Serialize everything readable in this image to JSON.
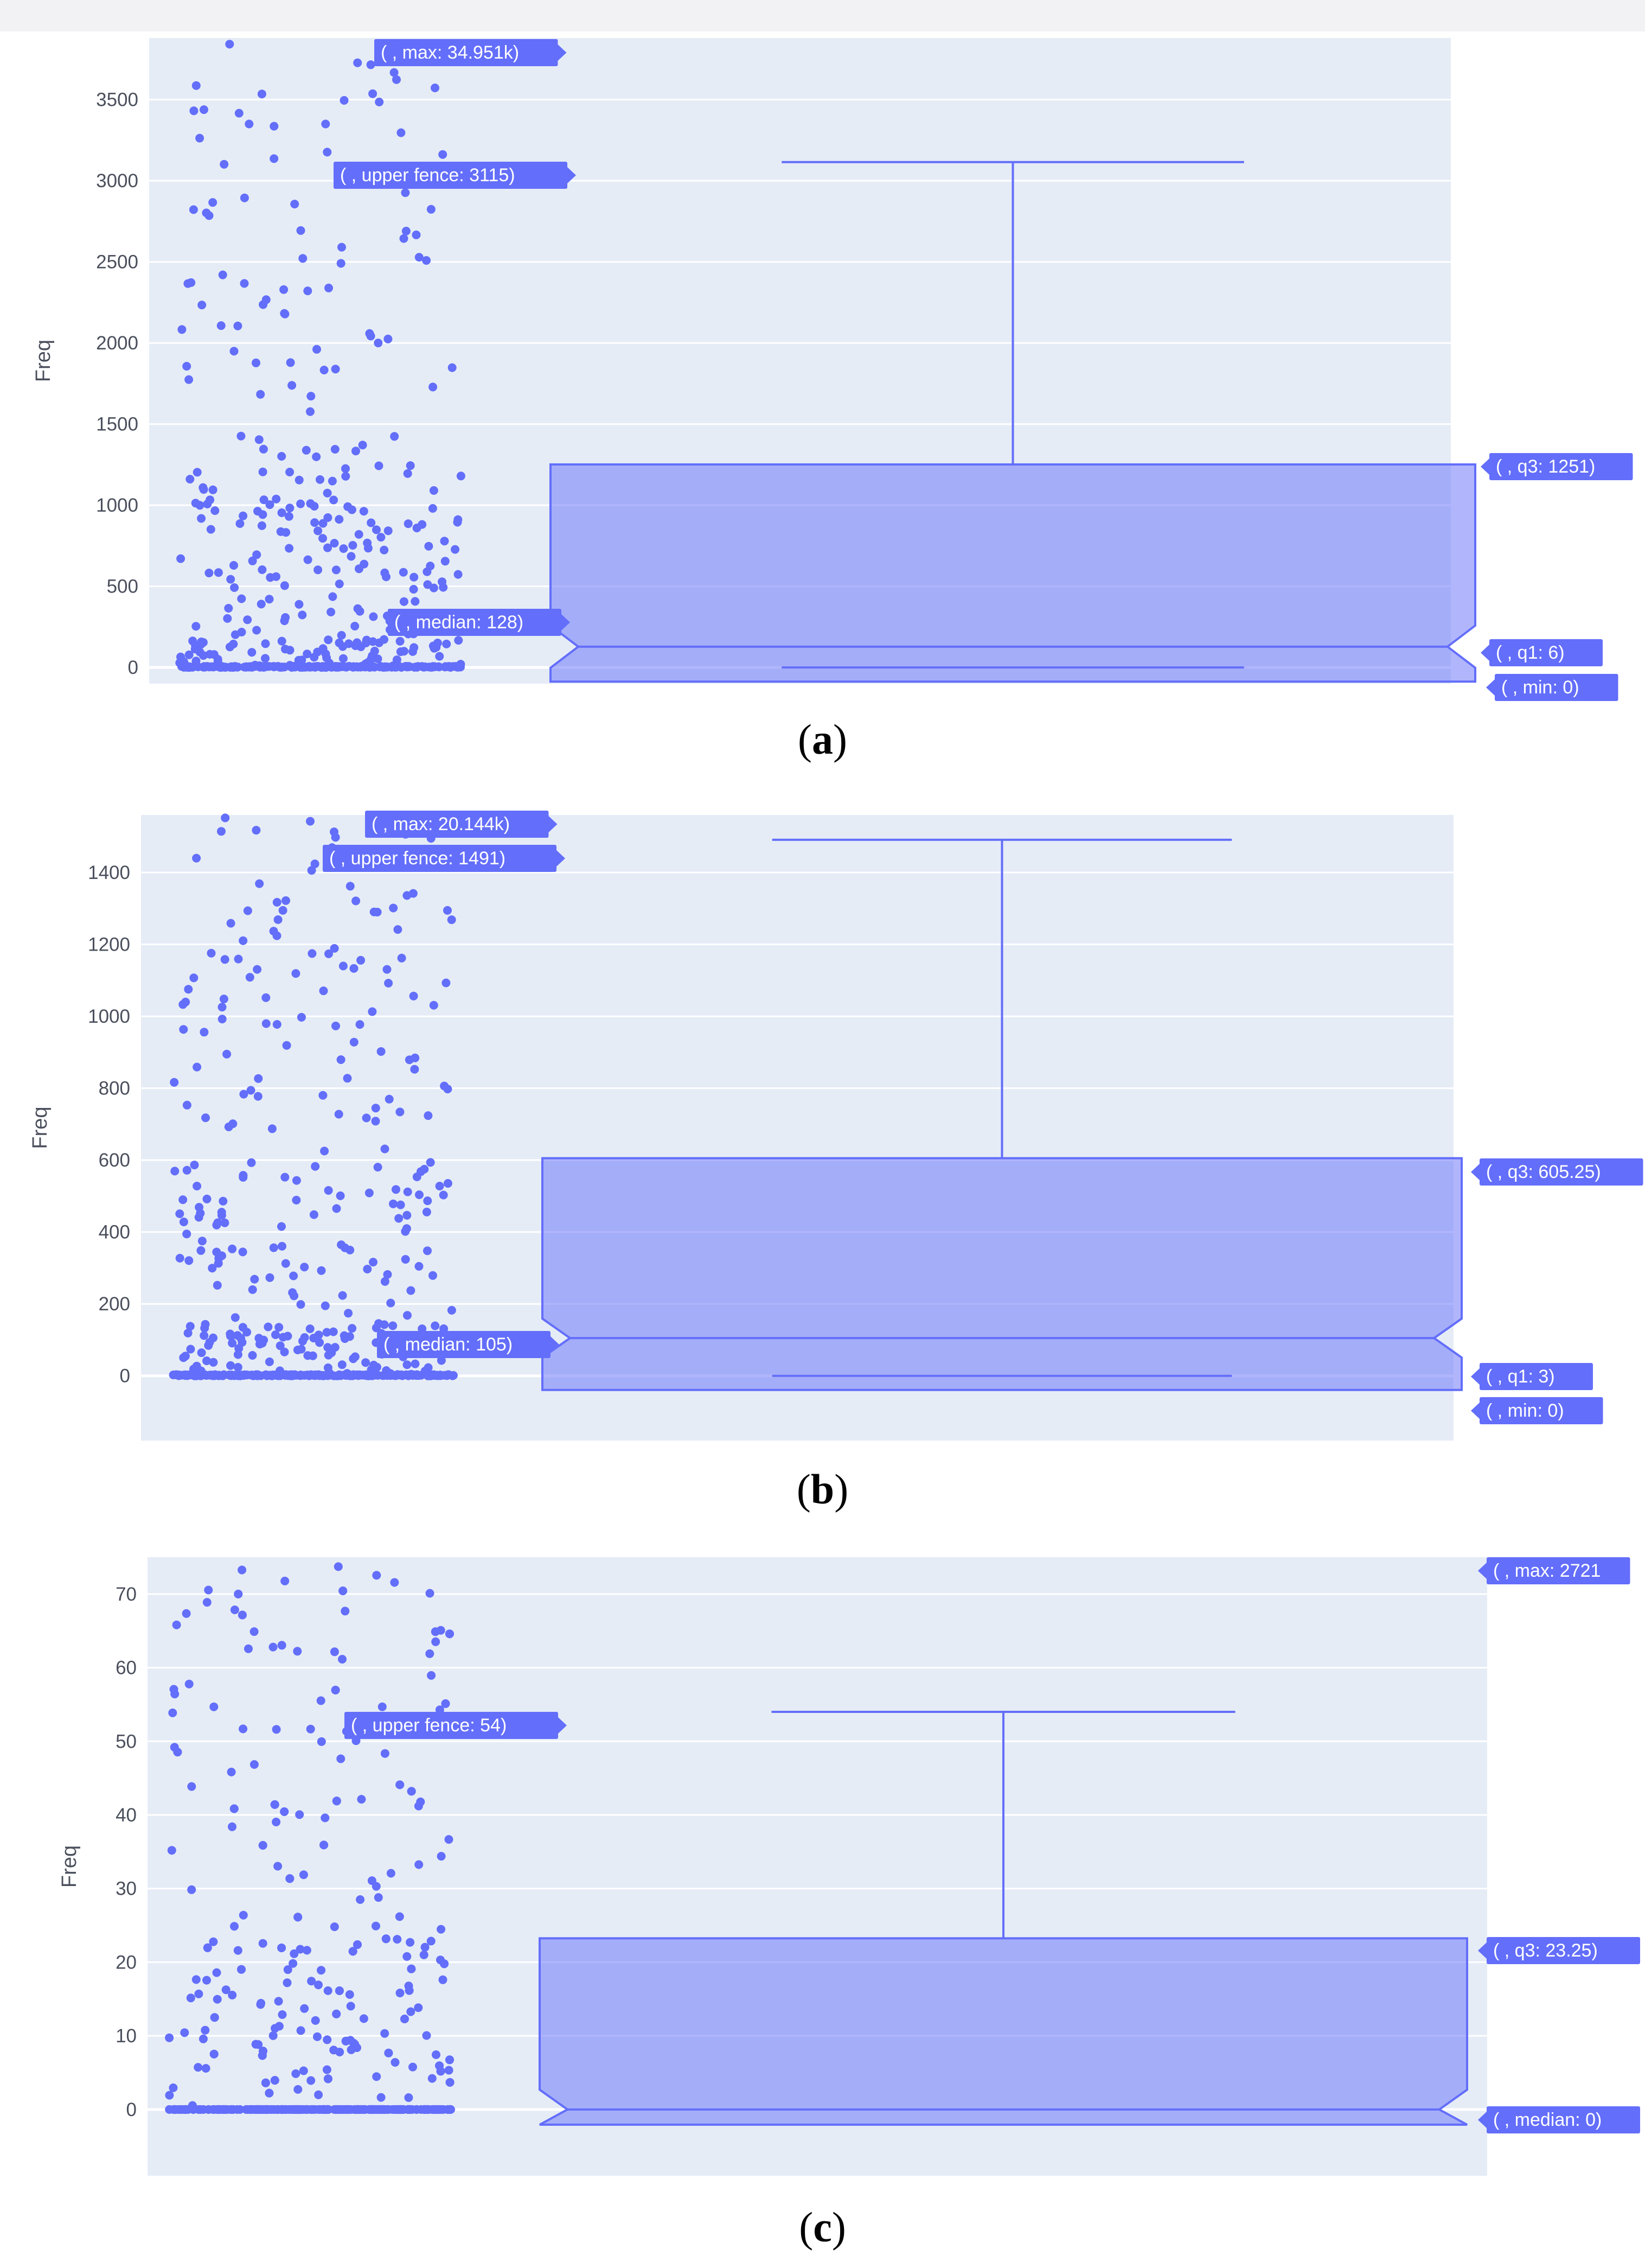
{
  "colors": {
    "plot_bg": "#e5ecf6",
    "grid": "#ffffff",
    "marker": "#636efa",
    "box_fill": "rgba(99,110,250,0.5)",
    "hover_bg": "#636efa",
    "hover_text": "#ffffff"
  },
  "chart_data": [
    {
      "type": "box",
      "caption": "a",
      "ylabel": "Freq",
      "ylim": [
        -100,
        3880
      ],
      "yticks": [
        0,
        500,
        1000,
        1500,
        2000,
        2500,
        3000,
        3500
      ],
      "notched": true,
      "points": "all",
      "stats": {
        "min": 0,
        "q1": 6,
        "median": 128,
        "q3": 1251,
        "upper_fence": 3115,
        "max": 34951
      },
      "hover_labels": [
        {
          "key": "max",
          "text": "( , max: 34.951k)"
        },
        {
          "key": "upper_fence",
          "text": "( , upper fence: 3115)"
        },
        {
          "key": "median",
          "text": "( , median: 128)"
        },
        {
          "key": "q3",
          "text": "( , q3: 1251)"
        },
        {
          "key": "q1",
          "text": "( , q1: 6)"
        },
        {
          "key": "min",
          "text": "( , min: 0)"
        }
      ]
    },
    {
      "type": "box",
      "caption": "b",
      "ylabel": "Freq",
      "ylim": [
        -180,
        1560
      ],
      "yticks": [
        0,
        200,
        400,
        600,
        800,
        1000,
        1200,
        1400
      ],
      "notched": true,
      "points": "all",
      "stats": {
        "min": 0,
        "q1": 3,
        "median": 105,
        "q3": 605.25,
        "upper_fence": 1491,
        "max": 20144
      },
      "hover_labels": [
        {
          "key": "max",
          "text": "( , max: 20.144k)"
        },
        {
          "key": "upper_fence",
          "text": "( , upper fence: 1491)"
        },
        {
          "key": "median",
          "text": "( , median: 105)"
        },
        {
          "key": "q3",
          "text": "( , q3: 605.25)"
        },
        {
          "key": "q1",
          "text": "( , q1: 3)"
        },
        {
          "key": "min",
          "text": "( , min: 0)"
        }
      ]
    },
    {
      "type": "box",
      "caption": "c",
      "ylabel": "Freq",
      "ylim": [
        -9,
        75
      ],
      "yticks": [
        0,
        10,
        20,
        30,
        40,
        50,
        60,
        70
      ],
      "notched": true,
      "points": "all",
      "stats": {
        "min": 0,
        "q1": 0,
        "median": 0,
        "q3": 23.25,
        "upper_fence": 54,
        "max": 2721
      },
      "hover_labels": [
        {
          "key": "max",
          "text": "( , max: 2721"
        },
        {
          "key": "upper_fence",
          "text": "( , upper fence: 54)"
        },
        {
          "key": "q3",
          "text": "( , q3: 23.25)"
        },
        {
          "key": "median",
          "text": "( , median: 0)"
        }
      ]
    }
  ]
}
